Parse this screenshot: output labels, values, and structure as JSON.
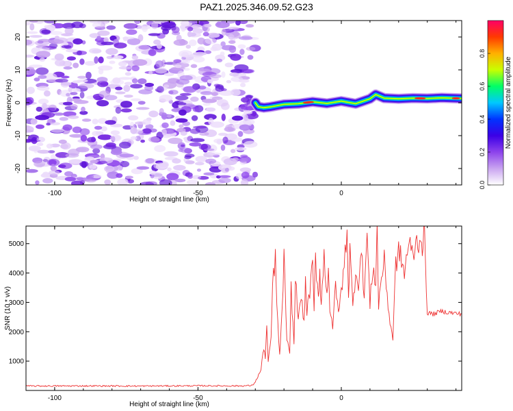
{
  "title": "PAZ1.2025.346.09.52.G23",
  "chart_data": [
    {
      "type": "heatmap",
      "name": "spectrogram",
      "xlabel": "Height of straight line (km)",
      "ylabel": "Frequency (Hz)",
      "xlim": [
        -110,
        42
      ],
      "ylim": [
        -25,
        25
      ],
      "xticks": [
        -100,
        -50,
        0
      ],
      "yticks": [
        -20,
        -10,
        0,
        10,
        20
      ],
      "noise_region": {
        "x_range": [
          -110,
          -30
        ],
        "y_range": [
          -25,
          25
        ]
      },
      "signal_ridge": {
        "x": [
          -30,
          -29,
          -27,
          -25,
          -20,
          -15,
          -10,
          -5,
          0,
          5,
          8,
          10,
          12,
          15,
          20,
          25,
          30,
          35,
          42
        ],
        "y": [
          0,
          -1.2,
          -1.5,
          -1.3,
          -0.5,
          -0.3,
          0.3,
          -0.2,
          0.5,
          -0.3,
          0.6,
          1.2,
          2.5,
          1.4,
          1.2,
          1.4,
          1.3,
          1.5,
          1.3
        ]
      },
      "colorbar": {
        "label": "Normalized spectral amplitude",
        "range": [
          0,
          1
        ],
        "ticks": [
          "0.0",
          "0.2",
          "0.4",
          "0.6",
          "0.8"
        ],
        "colors": [
          "#ffffff",
          "#c9a4f0",
          "#8d43ec",
          "#3b00e6",
          "#0033ff",
          "#00c8ff",
          "#00ff66",
          "#c8ff00",
          "#ffb000",
          "#ff3a00",
          "#ff0066"
        ]
      }
    },
    {
      "type": "line",
      "name": "snr",
      "xlabel": "Height of straight line (km)",
      "ylabel": "SNR (10 * v/v)",
      "xlim": [
        -110,
        42
      ],
      "ylim": [
        0,
        5600
      ],
      "xticks": [
        -100,
        -50,
        0
      ],
      "yticks": [
        1000,
        2000,
        3000,
        4000,
        5000
      ],
      "color": "#ee3030",
      "series": [
        {
          "name": "SNR",
          "x": [
            -110,
            -90,
            -70,
            -50,
            -35,
            -31,
            -30,
            -28,
            -27,
            -26.5,
            -26,
            -25.5,
            -24.5,
            -24,
            -23,
            -22.5,
            -21.5,
            -21,
            -20,
            -19,
            -18,
            -17.5,
            -16.5,
            -16,
            -15,
            -14,
            -13,
            -12.5,
            -12,
            -11,
            -10,
            -9.5,
            -9,
            -8,
            -7.5,
            -7,
            -6,
            -5,
            -4.5,
            -4,
            -3,
            -2,
            -1,
            0,
            1,
            2,
            2.5,
            3,
            4,
            5,
            6,
            7,
            8,
            9,
            10,
            11,
            12,
            12.5,
            13,
            14,
            15,
            16,
            17,
            18,
            19,
            20,
            21,
            22,
            23,
            24,
            25,
            26,
            27,
            28,
            28.5,
            29,
            30,
            32,
            35,
            38,
            42
          ],
          "y": [
            150,
            155,
            150,
            160,
            155,
            170,
            300,
            700,
            1500,
            1100,
            2200,
            900,
            1800,
            3500,
            4600,
            2800,
            1200,
            2000,
            4500,
            1700,
            1200,
            3500,
            1600,
            3800,
            2500,
            3200,
            2200,
            3800,
            2600,
            3400,
            4200,
            2700,
            4500,
            3200,
            4100,
            2900,
            4600,
            3300,
            4300,
            2800,
            2000,
            3800,
            2600,
            3400,
            4200,
            5600,
            3200,
            4800,
            2800,
            4100,
            3700,
            4700,
            3300,
            5300,
            2900,
            4200,
            3700,
            5500,
            2900,
            3900,
            4400,
            3300,
            2300,
            1800,
            4300,
            4700,
            4500,
            3900,
            4800,
            4900,
            4600,
            5000,
            5100,
            5200,
            4800,
            5400,
            2650,
            2600,
            2700,
            2650,
            2600
          ]
        }
      ]
    }
  ]
}
